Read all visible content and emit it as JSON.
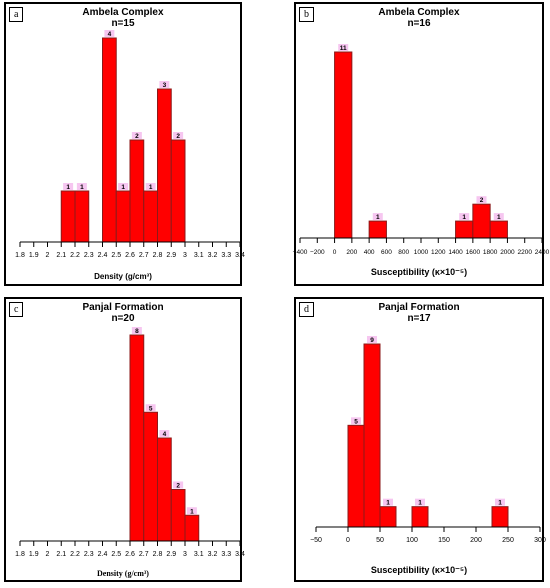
{
  "chart_data": [
    {
      "panel": "a",
      "type": "bar",
      "title": "Ambela Complex",
      "subtitle": "n=15",
      "xlabel": "Density (g/cm³)",
      "xlim": [
        1.8,
        3.4
      ],
      "ylim": [
        0,
        4
      ],
      "xticks": [
        "1.8",
        "1.9",
        "2",
        "2.1",
        "2.2",
        "2.3",
        "2.4",
        "2.5",
        "2.6",
        "2.7",
        "2.8",
        "2.9",
        "3",
        "3.1",
        "3.2",
        "3.3",
        "3.4"
      ],
      "bins": [
        [
          2.1,
          2.2
        ],
        [
          2.2,
          2.3
        ],
        [
          2.4,
          2.5
        ],
        [
          2.5,
          2.6
        ],
        [
          2.6,
          2.7
        ],
        [
          2.7,
          2.8
        ],
        [
          2.8,
          2.9
        ],
        [
          2.9,
          3.0
        ]
      ],
      "values": [
        1,
        1,
        4,
        1,
        2,
        1,
        3,
        2
      ],
      "labels": [
        "1",
        "1",
        "4",
        "1",
        "2",
        "1",
        "3",
        "2"
      ]
    },
    {
      "panel": "b",
      "type": "bar",
      "title": "Ambela Complex",
      "subtitle": "n=16",
      "xlabel": "Susceptibility (κ×10⁻⁵)",
      "xlim": [
        -400,
        2400
      ],
      "ylim": [
        0,
        11
      ],
      "xticks": [
        "−400",
        "−200",
        "0",
        "200",
        "400",
        "600",
        "800",
        "1000",
        "1200",
        "1400",
        "1600",
        "1800",
        "2000",
        "2200",
        "2400"
      ],
      "bins": [
        [
          0,
          200
        ],
        [
          400,
          600
        ],
        [
          1400,
          1600
        ],
        [
          1600,
          1800
        ],
        [
          1800,
          2000
        ]
      ],
      "values": [
        11,
        1,
        1,
        2,
        1
      ],
      "labels": [
        "11",
        "1",
        "1",
        "2",
        "1"
      ]
    },
    {
      "panel": "c",
      "type": "bar",
      "title": "Panjal Formation",
      "subtitle": "n=20",
      "xlabel": "Density (g/cm³)",
      "xlim": [
        1.8,
        3.4
      ],
      "ylim": [
        0,
        8
      ],
      "xticks": [
        "1.8",
        "1.9",
        "2",
        "2.1",
        "2.2",
        "2.3",
        "2.4",
        "2.5",
        "2.6",
        "2.7",
        "2.8",
        "2.9",
        "3",
        "3.1",
        "3.2",
        "3.3",
        "3.4"
      ],
      "bins": [
        [
          2.6,
          2.7
        ],
        [
          2.7,
          2.8
        ],
        [
          2.8,
          2.9
        ],
        [
          2.9,
          3.0
        ],
        [
          3.0,
          3.1
        ]
      ],
      "values": [
        8,
        5,
        4,
        2,
        1
      ],
      "labels": [
        "8",
        "5",
        "4",
        "2",
        "1"
      ]
    },
    {
      "panel": "d",
      "type": "bar",
      "title": "Panjal Formation",
      "subtitle": "n=17",
      "xlabel": "Susceptibility (κ×10⁻⁵)",
      "xlim": [
        -50,
        300
      ],
      "ylim": [
        0,
        9
      ],
      "xticks": [
        "−50",
        "0",
        "50",
        "100",
        "150",
        "200",
        "250",
        "300"
      ],
      "bins": [
        [
          0,
          25
        ],
        [
          25,
          50
        ],
        [
          50,
          75
        ],
        [
          100,
          125
        ],
        [
          225,
          250
        ]
      ],
      "values": [
        5,
        9,
        1,
        1,
        1
      ],
      "labels": [
        "5",
        "9",
        "1",
        "1",
        "1"
      ]
    }
  ],
  "colors": {
    "bar": "#ff0000",
    "bar_stroke": "#8b1a1a",
    "label_bg": "#f6c6f0",
    "axis": "#000000"
  }
}
